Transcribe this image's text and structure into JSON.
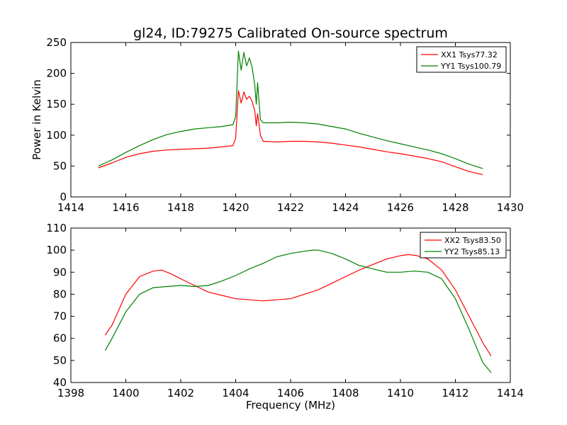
{
  "chart_data": [
    {
      "type": "line",
      "title": "gl24, ID:79275 Calibrated On-source spectrum",
      "xlabel": "",
      "ylabel": "Power in Kelvin",
      "xlim": [
        1414,
        1430
      ],
      "ylim": [
        0,
        250
      ],
      "xticks": [
        1414,
        1416,
        1418,
        1420,
        1422,
        1424,
        1426,
        1428,
        1430
      ],
      "yticks": [
        0,
        50,
        100,
        150,
        200,
        250
      ],
      "grid": false,
      "legend_position": "top-right",
      "series": [
        {
          "name": "XX1 Tsys77.32",
          "color": "#ff0000",
          "points": [
            [
              1415.0,
              47
            ],
            [
              1415.5,
              55
            ],
            [
              1416.0,
              64
            ],
            [
              1416.5,
              70
            ],
            [
              1417.0,
              74
            ],
            [
              1417.5,
              76
            ],
            [
              1418.0,
              77
            ],
            [
              1418.5,
              78
            ],
            [
              1419.0,
              79
            ],
            [
              1419.5,
              81
            ],
            [
              1419.9,
              83
            ],
            [
              1420.0,
              95
            ],
            [
              1420.1,
              172
            ],
            [
              1420.2,
              152
            ],
            [
              1420.3,
              170
            ],
            [
              1420.4,
              158
            ],
            [
              1420.5,
              163
            ],
            [
              1420.6,
              155
            ],
            [
              1420.7,
              138
            ],
            [
              1420.75,
              115
            ],
            [
              1420.8,
              135
            ],
            [
              1420.9,
              100
            ],
            [
              1421.0,
              90
            ],
            [
              1421.5,
              89
            ],
            [
              1422.0,
              90
            ],
            [
              1422.5,
              90
            ],
            [
              1423.0,
              89
            ],
            [
              1423.5,
              87
            ],
            [
              1424.0,
              84
            ],
            [
              1424.5,
              81
            ],
            [
              1425.0,
              77
            ],
            [
              1425.5,
              73
            ],
            [
              1426.0,
              70
            ],
            [
              1426.5,
              66
            ],
            [
              1427.0,
              62
            ],
            [
              1427.5,
              57
            ],
            [
              1428.0,
              49
            ],
            [
              1428.5,
              41
            ],
            [
              1429.0,
              36
            ]
          ]
        },
        {
          "name": "YY1 Tsys100.79",
          "color": "#008000",
          "points": [
            [
              1415.0,
              50
            ],
            [
              1415.5,
              60
            ],
            [
              1416.0,
              72
            ],
            [
              1416.5,
              83
            ],
            [
              1417.0,
              93
            ],
            [
              1417.5,
              101
            ],
            [
              1418.0,
              106
            ],
            [
              1418.5,
              110
            ],
            [
              1419.0,
              112
            ],
            [
              1419.5,
              114
            ],
            [
              1419.9,
              117
            ],
            [
              1420.0,
              130
            ],
            [
              1420.1,
              236
            ],
            [
              1420.2,
              205
            ],
            [
              1420.3,
              234
            ],
            [
              1420.4,
              212
            ],
            [
              1420.5,
              225
            ],
            [
              1420.6,
              210
            ],
            [
              1420.7,
              180
            ],
            [
              1420.75,
              150
            ],
            [
              1420.8,
              185
            ],
            [
              1420.9,
              125
            ],
            [
              1421.0,
              120
            ],
            [
              1421.5,
              120
            ],
            [
              1422.0,
              121
            ],
            [
              1422.5,
              120
            ],
            [
              1423.0,
              118
            ],
            [
              1423.5,
              114
            ],
            [
              1424.0,
              110
            ],
            [
              1424.5,
              103
            ],
            [
              1425.0,
              97
            ],
            [
              1425.5,
              91
            ],
            [
              1426.0,
              86
            ],
            [
              1426.5,
              81
            ],
            [
              1427.0,
              76
            ],
            [
              1427.5,
              70
            ],
            [
              1428.0,
              62
            ],
            [
              1428.5,
              53
            ],
            [
              1429.0,
              46
            ]
          ]
        }
      ]
    },
    {
      "type": "line",
      "title": "",
      "xlabel": "Frequency (MHz)",
      "ylabel": "",
      "xlim": [
        1398,
        1414
      ],
      "ylim": [
        40,
        110
      ],
      "xticks": [
        1398,
        1400,
        1402,
        1404,
        1406,
        1408,
        1410,
        1412,
        1414
      ],
      "yticks": [
        40,
        50,
        60,
        70,
        80,
        90,
        100,
        110
      ],
      "grid": false,
      "legend_position": "top-right",
      "series": [
        {
          "name": "XX2 Tsys83.50",
          "color": "#ff0000",
          "points": [
            [
              1399.25,
              61.5
            ],
            [
              1399.5,
              66
            ],
            [
              1400.0,
              80
            ],
            [
              1400.5,
              88
            ],
            [
              1401.0,
              90.5
            ],
            [
              1401.3,
              91
            ],
            [
              1401.6,
              89.5
            ],
            [
              1402.0,
              87
            ],
            [
              1402.5,
              84
            ],
            [
              1403.0,
              81
            ],
            [
              1403.5,
              79.5
            ],
            [
              1404.0,
              78
            ],
            [
              1404.5,
              77.5
            ],
            [
              1405.0,
              77
            ],
            [
              1405.5,
              77.5
            ],
            [
              1406.0,
              78
            ],
            [
              1406.5,
              80
            ],
            [
              1407.0,
              82
            ],
            [
              1407.5,
              85
            ],
            [
              1408.0,
              88
            ],
            [
              1408.5,
              91
            ],
            [
              1409.0,
              93.5
            ],
            [
              1409.5,
              96
            ],
            [
              1410.0,
              97.5
            ],
            [
              1410.3,
              98
            ],
            [
              1410.6,
              97.5
            ],
            [
              1411.0,
              96
            ],
            [
              1411.5,
              91
            ],
            [
              1412.0,
              82
            ],
            [
              1412.5,
              70
            ],
            [
              1413.0,
              58
            ],
            [
              1413.3,
              52
            ]
          ]
        },
        {
          "name": "YY2 Tsys85.13",
          "color": "#008000",
          "points": [
            [
              1399.25,
              54.5
            ],
            [
              1399.5,
              60
            ],
            [
              1400.0,
              72
            ],
            [
              1400.5,
              80
            ],
            [
              1401.0,
              83
            ],
            [
              1401.5,
              83.5
            ],
            [
              1402.0,
              84
            ],
            [
              1402.5,
              83.5
            ],
            [
              1403.0,
              84
            ],
            [
              1403.5,
              86
            ],
            [
              1404.0,
              88.5
            ],
            [
              1404.5,
              91.5
            ],
            [
              1405.0,
              94
            ],
            [
              1405.5,
              97
            ],
            [
              1406.0,
              98.5
            ],
            [
              1406.5,
              99.5
            ],
            [
              1406.8,
              100
            ],
            [
              1407.0,
              100
            ],
            [
              1407.5,
              98.5
            ],
            [
              1408.0,
              96
            ],
            [
              1408.5,
              93
            ],
            [
              1409.0,
              91.5
            ],
            [
              1409.5,
              90
            ],
            [
              1410.0,
              90
            ],
            [
              1410.5,
              90.5
            ],
            [
              1411.0,
              90
            ],
            [
              1411.5,
              87
            ],
            [
              1412.0,
              78
            ],
            [
              1412.5,
              64
            ],
            [
              1413.0,
              49
            ],
            [
              1413.3,
              44.5
            ]
          ]
        }
      ]
    }
  ]
}
